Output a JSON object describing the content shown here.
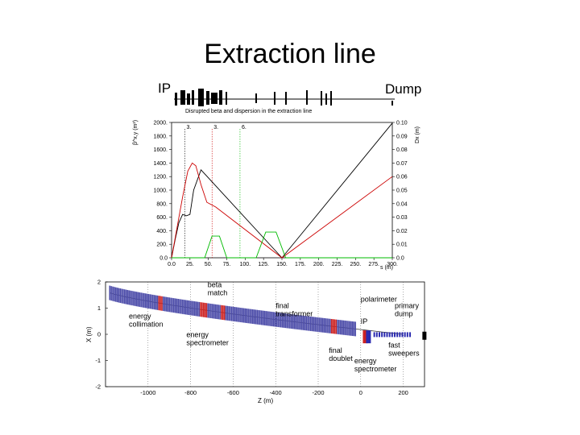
{
  "slide": {
    "title": "Extraction line",
    "ip_label": "IP",
    "dump_label": "Dump"
  },
  "chart_data": [
    {
      "type": "line",
      "title": "Disrupted beta and dispersion in the extraction line",
      "xlabel": "s (m)",
      "ylabel": "β^x,y (m²)",
      "y2label": "Dx (m)",
      "xlim": [
        0,
        300
      ],
      "ylim": [
        0,
        2000
      ],
      "y2lim": [
        0,
        0.1
      ],
      "xticks": [
        "0.0",
        "25.",
        "50.",
        "75.",
        "100.",
        "125.",
        "150.",
        "175.",
        "200.",
        "225.",
        "250.",
        "275.",
        "300."
      ],
      "yticks": [
        "0.0",
        "200.",
        "400.",
        "600.",
        "800.",
        "1000.",
        "1200.",
        "1400.",
        "1600.",
        "1800.",
        "2000."
      ],
      "y2ticks": [
        "0.0",
        "0.01",
        "0.02",
        "0.03",
        "0.04",
        "0.05",
        "0.06",
        "0.07",
        "0.08",
        "0.09",
        "0.10"
      ],
      "markers": [
        {
          "label": "3.",
          "x": 18
        },
        {
          "label": "3.",
          "x": 55
        },
        {
          "label": "6.",
          "x": 93
        }
      ],
      "series": [
        {
          "color": "#000000",
          "axis": "y",
          "points": [
            [
              0,
              0
            ],
            [
              5,
              280
            ],
            [
              10,
              520
            ],
            [
              15,
              640
            ],
            [
              20,
              620
            ],
            [
              25,
              640
            ],
            [
              30,
              1000
            ],
            [
              40,
              1300
            ],
            [
              150,
              0
            ],
            [
              300,
              1990
            ]
          ]
        },
        {
          "color": "#cc0000",
          "axis": "y",
          "points": [
            [
              0,
              0
            ],
            [
              8,
              480
            ],
            [
              15,
              900
            ],
            [
              22,
              1280
            ],
            [
              28,
              1400
            ],
            [
              33,
              1360
            ],
            [
              40,
              1080
            ],
            [
              48,
              820
            ],
            [
              60,
              750
            ],
            [
              150,
              0
            ],
            [
              300,
              1200
            ]
          ]
        },
        {
          "color": "#00bb00",
          "axis": "y2",
          "points": [
            [
              0,
              0
            ],
            [
              45,
              0
            ],
            [
              55,
              0.016
            ],
            [
              65,
              0.016
            ],
            [
              75,
              0
            ],
            [
              115,
              0
            ],
            [
              128,
              0.019
            ],
            [
              142,
              0.019
            ],
            [
              155,
              0
            ],
            [
              300,
              0
            ]
          ]
        }
      ]
    },
    {
      "type": "scatter",
      "xlabel": "Z (m)",
      "ylabel": "X (m)",
      "xlim": [
        -1200,
        300
      ],
      "ylim": [
        -2,
        2
      ],
      "xticks": [
        "-1000",
        "-800",
        "-600",
        "-400",
        "-200",
        "0",
        "200"
      ],
      "yticks": [
        "-2",
        "-1",
        "0",
        "1",
        "2"
      ],
      "annotations": [
        {
          "text": "beta\nmatch"
        },
        {
          "text": "final\ntransformer"
        },
        {
          "text": "polarimeter"
        },
        {
          "text": "primary\ndump"
        },
        {
          "text": "energy\ncollimation"
        },
        {
          "text": "IP"
        },
        {
          "text": "energy\nspectrometer"
        },
        {
          "text": "final\ndoublet"
        },
        {
          "text": "energy\nspectrometer"
        },
        {
          "text": "fast\nsweepers"
        }
      ]
    }
  ]
}
